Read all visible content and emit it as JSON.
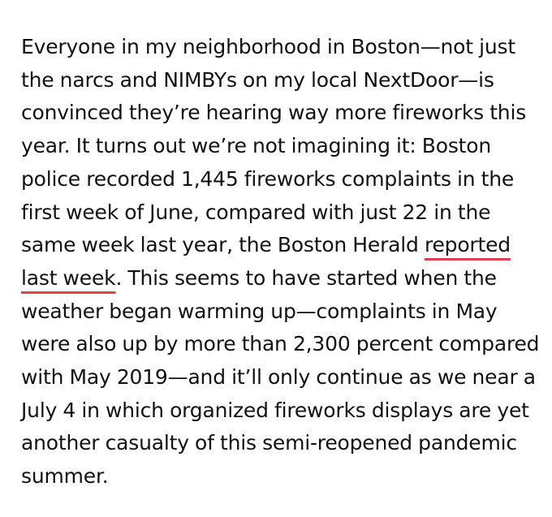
{
  "article": {
    "lines": [
      {
        "text": "Everyone in my neighborhood in Boston—not just"
      },
      {
        "text": "the narcs and NIMBYs on my local NextDoor—is"
      },
      {
        "text": "convinced they’re hearing way more fireworks this"
      },
      {
        "text": "year. It turns out we’re not imagining it: Boston"
      },
      {
        "text": "police recorded 1,445 fireworks complaints in the"
      },
      {
        "text": "first week of June, compared with just 22 in the"
      },
      {
        "before": "same week last year, the Boston Herald ",
        "link": "reported"
      },
      {
        "link": "last week",
        "after": ". This seems to have started when the"
      },
      {
        "text": "weather began warming up—complaints in May"
      },
      {
        "text": "were also up by more than 2,300 percent compared"
      },
      {
        "text": "with May 2019—and it’ll only continue as we near a"
      },
      {
        "text": "July 4 in which organized fireworks displays are yet"
      },
      {
        "text": "another casualty of this semi-reopened pandemic"
      },
      {
        "text": "summer."
      }
    ],
    "link_underline_color": "#e0404a",
    "text_color": "#121212"
  }
}
